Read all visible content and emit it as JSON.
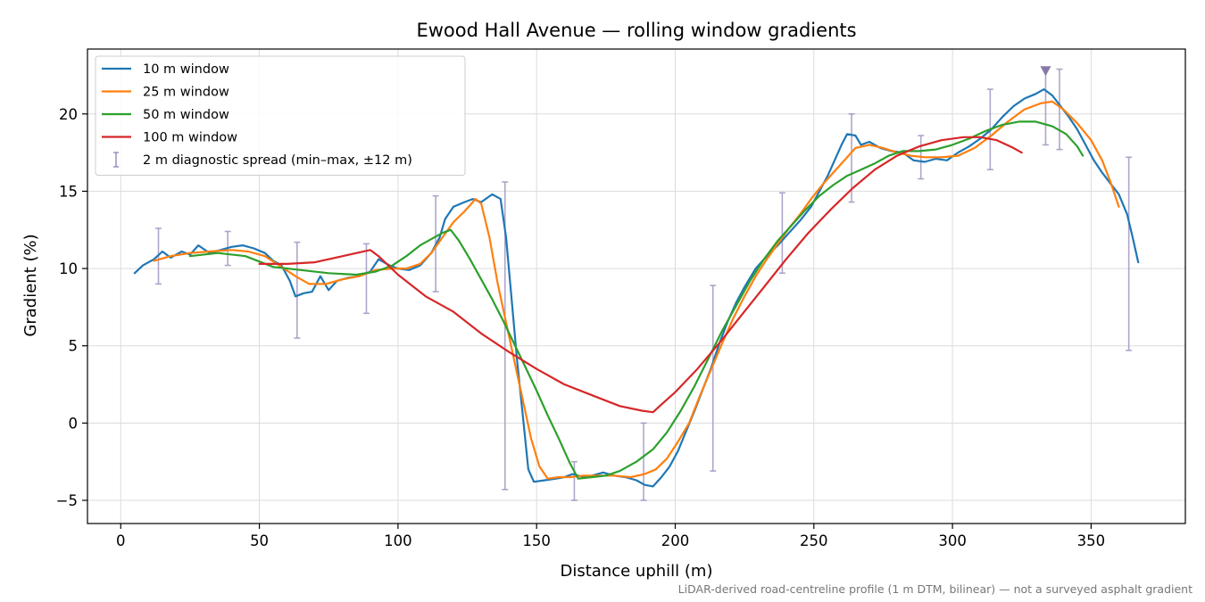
{
  "chart_data": {
    "type": "line",
    "title": "Ewood Hall Avenue — rolling window gradients",
    "xlabel": "Distance uphill (m)",
    "ylabel": "Gradient (%)",
    "xlim": [
      -12,
      384
    ],
    "ylim": [
      -6.5,
      24.2
    ],
    "xticks": [
      0,
      50,
      100,
      150,
      200,
      250,
      300,
      350
    ],
    "yticks": [
      -5,
      0,
      5,
      10,
      15,
      20
    ],
    "grid": true,
    "legend_position": "top-left",
    "footnote": "LiDAR-derived road-centreline profile (1 m DTM, bilinear) — not a surveyed asphalt gradient",
    "series": [
      {
        "name": "10 m window",
        "color": "#1f77b4",
        "points": [
          [
            5,
            9.7
          ],
          [
            8,
            10.2
          ],
          [
            12,
            10.6
          ],
          [
            15,
            11.1
          ],
          [
            18,
            10.7
          ],
          [
            22,
            11.1
          ],
          [
            25,
            10.9
          ],
          [
            28,
            11.5
          ],
          [
            32,
            11.0
          ],
          [
            36,
            11.2
          ],
          [
            40,
            11.4
          ],
          [
            44,
            11.5
          ],
          [
            48,
            11.3
          ],
          [
            52,
            11.0
          ],
          [
            55,
            10.5
          ],
          [
            58,
            10.2
          ],
          [
            61,
            9.2
          ],
          [
            63,
            8.2
          ],
          [
            66,
            8.4
          ],
          [
            69,
            8.5
          ],
          [
            72,
            9.5
          ],
          [
            75,
            8.6
          ],
          [
            78,
            9.2
          ],
          [
            82,
            9.4
          ],
          [
            86,
            9.5
          ],
          [
            90,
            9.8
          ],
          [
            93,
            10.6
          ],
          [
            97,
            10.2
          ],
          [
            100,
            10.0
          ],
          [
            104,
            9.9
          ],
          [
            108,
            10.2
          ],
          [
            112,
            11.0
          ],
          [
            115,
            12.0
          ],
          [
            117,
            13.2
          ],
          [
            120,
            14.0
          ],
          [
            124,
            14.3
          ],
          [
            127,
            14.5
          ],
          [
            130,
            14.3
          ],
          [
            134,
            14.8
          ],
          [
            137,
            14.5
          ],
          [
            139,
            12.0
          ],
          [
            141,
            8.0
          ],
          [
            143,
            4.0
          ],
          [
            145,
            0.5
          ],
          [
            147,
            -3.0
          ],
          [
            149,
            -3.8
          ],
          [
            153,
            -3.7
          ],
          [
            157,
            -3.6
          ],
          [
            160,
            -3.5
          ],
          [
            163,
            -3.3
          ],
          [
            167,
            -3.5
          ],
          [
            170,
            -3.4
          ],
          [
            174,
            -3.2
          ],
          [
            178,
            -3.4
          ],
          [
            182,
            -3.5
          ],
          [
            186,
            -3.7
          ],
          [
            189,
            -4.0
          ],
          [
            192,
            -4.1
          ],
          [
            195,
            -3.5
          ],
          [
            198,
            -2.8
          ],
          [
            201,
            -1.8
          ],
          [
            204,
            -0.5
          ],
          [
            207,
            0.8
          ],
          [
            210,
            2.2
          ],
          [
            213,
            3.6
          ],
          [
            216,
            5.2
          ],
          [
            219,
            6.6
          ],
          [
            222,
            7.8
          ],
          [
            225,
            8.8
          ],
          [
            229,
            10.0
          ],
          [
            233,
            10.8
          ],
          [
            237,
            11.5
          ],
          [
            241,
            12.3
          ],
          [
            245,
            13.1
          ],
          [
            249,
            14.0
          ],
          [
            252,
            15.0
          ],
          [
            255,
            16.0
          ],
          [
            258,
            17.2
          ],
          [
            260,
            18.0
          ],
          [
            262,
            18.7
          ],
          [
            265,
            18.6
          ],
          [
            267,
            18.0
          ],
          [
            270,
            18.2
          ],
          [
            274,
            17.8
          ],
          [
            278,
            17.6
          ],
          [
            282,
            17.5
          ],
          [
            286,
            17.0
          ],
          [
            290,
            16.9
          ],
          [
            294,
            17.1
          ],
          [
            298,
            17.0
          ],
          [
            302,
            17.5
          ],
          [
            306,
            17.9
          ],
          [
            310,
            18.4
          ],
          [
            314,
            19.0
          ],
          [
            318,
            19.8
          ],
          [
            322,
            20.5
          ],
          [
            326,
            21.0
          ],
          [
            330,
            21.3
          ],
          [
            333,
            21.6
          ],
          [
            336,
            21.2
          ],
          [
            339,
            20.5
          ],
          [
            342,
            19.8
          ],
          [
            345,
            19.0
          ],
          [
            348,
            18.0
          ],
          [
            351,
            17.0
          ],
          [
            354,
            16.2
          ],
          [
            357,
            15.5
          ],
          [
            360,
            14.8
          ],
          [
            363,
            13.5
          ],
          [
            365,
            12.0
          ],
          [
            367,
            10.4
          ]
        ]
      },
      {
        "name": "25 m window",
        "color": "#ff7f0e",
        "points": [
          [
            12,
            10.5
          ],
          [
            18,
            10.8
          ],
          [
            25,
            11.0
          ],
          [
            32,
            11.1
          ],
          [
            40,
            11.2
          ],
          [
            46,
            11.1
          ],
          [
            52,
            10.8
          ],
          [
            58,
            10.1
          ],
          [
            63,
            9.5
          ],
          [
            68,
            9.0
          ],
          [
            74,
            9.0
          ],
          [
            80,
            9.3
          ],
          [
            86,
            9.5
          ],
          [
            92,
            9.9
          ],
          [
            98,
            10.0
          ],
          [
            103,
            10.0
          ],
          [
            108,
            10.3
          ],
          [
            112,
            11.0
          ],
          [
            116,
            12.0
          ],
          [
            120,
            13.0
          ],
          [
            124,
            13.7
          ],
          [
            128,
            14.5
          ],
          [
            130,
            14.2
          ],
          [
            133,
            12.0
          ],
          [
            136,
            9.0
          ],
          [
            139,
            6.5
          ],
          [
            142,
            4.0
          ],
          [
            145,
            1.5
          ],
          [
            148,
            -1.0
          ],
          [
            151,
            -2.8
          ],
          [
            154,
            -3.6
          ],
          [
            158,
            -3.5
          ],
          [
            162,
            -3.5
          ],
          [
            167,
            -3.4
          ],
          [
            172,
            -3.4
          ],
          [
            178,
            -3.4
          ],
          [
            184,
            -3.5
          ],
          [
            189,
            -3.3
          ],
          [
            193,
            -3.0
          ],
          [
            197,
            -2.3
          ],
          [
            201,
            -1.2
          ],
          [
            205,
            0.0
          ],
          [
            209,
            1.8
          ],
          [
            213,
            3.5
          ],
          [
            217,
            5.2
          ],
          [
            221,
            6.8
          ],
          [
            225,
            8.2
          ],
          [
            229,
            9.5
          ],
          [
            233,
            10.6
          ],
          [
            237,
            11.6
          ],
          [
            241,
            12.6
          ],
          [
            245,
            13.5
          ],
          [
            249,
            14.5
          ],
          [
            253,
            15.4
          ],
          [
            257,
            16.2
          ],
          [
            261,
            17.0
          ],
          [
            265,
            17.8
          ],
          [
            270,
            18.0
          ],
          [
            275,
            17.8
          ],
          [
            280,
            17.5
          ],
          [
            285,
            17.3
          ],
          [
            290,
            17.2
          ],
          [
            296,
            17.2
          ],
          [
            302,
            17.3
          ],
          [
            308,
            17.8
          ],
          [
            314,
            18.6
          ],
          [
            320,
            19.5
          ],
          [
            326,
            20.3
          ],
          [
            332,
            20.7
          ],
          [
            336,
            20.8
          ],
          [
            340,
            20.3
          ],
          [
            345,
            19.4
          ],
          [
            350,
            18.3
          ],
          [
            354,
            17.0
          ],
          [
            357,
            15.6
          ],
          [
            360,
            14.0
          ]
        ]
      },
      {
        "name": "50 m window",
        "color": "#2ca02c",
        "points": [
          [
            25,
            10.8
          ],
          [
            35,
            11.0
          ],
          [
            45,
            10.8
          ],
          [
            55,
            10.1
          ],
          [
            65,
            9.9
          ],
          [
            75,
            9.7
          ],
          [
            85,
            9.6
          ],
          [
            92,
            9.8
          ],
          [
            98,
            10.2
          ],
          [
            103,
            10.8
          ],
          [
            108,
            11.5
          ],
          [
            112,
            11.9
          ],
          [
            116,
            12.3
          ],
          [
            119,
            12.5
          ],
          [
            122,
            11.8
          ],
          [
            126,
            10.6
          ],
          [
            130,
            9.3
          ],
          [
            134,
            8.0
          ],
          [
            138,
            6.6
          ],
          [
            142,
            5.1
          ],
          [
            146,
            3.6
          ],
          [
            150,
            2.1
          ],
          [
            154,
            0.5
          ],
          [
            158,
            -1.0
          ],
          [
            162,
            -2.6
          ],
          [
            165,
            -3.6
          ],
          [
            170,
            -3.5
          ],
          [
            175,
            -3.4
          ],
          [
            180,
            -3.1
          ],
          [
            186,
            -2.5
          ],
          [
            192,
            -1.7
          ],
          [
            197,
            -0.6
          ],
          [
            202,
            0.8
          ],
          [
            207,
            2.4
          ],
          [
            212,
            4.2
          ],
          [
            217,
            6.0
          ],
          [
            222,
            7.6
          ],
          [
            227,
            9.2
          ],
          [
            232,
            10.6
          ],
          [
            237,
            11.8
          ],
          [
            242,
            12.8
          ],
          [
            247,
            13.8
          ],
          [
            252,
            14.7
          ],
          [
            257,
            15.4
          ],
          [
            262,
            16.0
          ],
          [
            267,
            16.4
          ],
          [
            272,
            16.8
          ],
          [
            277,
            17.3
          ],
          [
            282,
            17.6
          ],
          [
            288,
            17.6
          ],
          [
            294,
            17.7
          ],
          [
            300,
            18.0
          ],
          [
            306,
            18.4
          ],
          [
            312,
            18.9
          ],
          [
            318,
            19.3
          ],
          [
            324,
            19.5
          ],
          [
            330,
            19.5
          ],
          [
            336,
            19.2
          ],
          [
            341,
            18.7
          ],
          [
            345,
            17.9
          ],
          [
            347,
            17.3
          ]
        ]
      },
      {
        "name": "100 m window",
        "color": "#d62728",
        "points": [
          [
            50,
            10.3
          ],
          [
            60,
            10.3
          ],
          [
            70,
            10.4
          ],
          [
            80,
            10.8
          ],
          [
            90,
            11.2
          ],
          [
            93,
            10.8
          ],
          [
            100,
            9.6
          ],
          [
            110,
            8.2
          ],
          [
            120,
            7.2
          ],
          [
            130,
            5.8
          ],
          [
            140,
            4.6
          ],
          [
            150,
            3.5
          ],
          [
            160,
            2.5
          ],
          [
            170,
            1.8
          ],
          [
            180,
            1.1
          ],
          [
            188,
            0.8
          ],
          [
            192,
            0.7
          ],
          [
            195,
            1.2
          ],
          [
            200,
            2.0
          ],
          [
            208,
            3.5
          ],
          [
            216,
            5.2
          ],
          [
            224,
            7.0
          ],
          [
            232,
            8.8
          ],
          [
            240,
            10.6
          ],
          [
            248,
            12.3
          ],
          [
            256,
            13.8
          ],
          [
            264,
            15.2
          ],
          [
            272,
            16.4
          ],
          [
            280,
            17.3
          ],
          [
            288,
            17.9
          ],
          [
            296,
            18.3
          ],
          [
            304,
            18.5
          ],
          [
            310,
            18.5
          ],
          [
            316,
            18.3
          ],
          [
            322,
            17.8
          ],
          [
            325,
            17.5
          ]
        ]
      }
    ],
    "error_bars": {
      "name": "2 m diagnostic spread (min–max, ±12 m)",
      "color": "#a096c3",
      "items": [
        {
          "x": 13.6,
          "low": 9.0,
          "high": 12.6
        },
        {
          "x": 38.6,
          "low": 10.2,
          "high": 12.4
        },
        {
          "x": 63.6,
          "low": 5.5,
          "high": 11.7
        },
        {
          "x": 88.6,
          "low": 7.1,
          "high": 11.6
        },
        {
          "x": 113.6,
          "low": 8.5,
          "high": 14.7
        },
        {
          "x": 138.6,
          "low": -4.3,
          "high": 15.6
        },
        {
          "x": 163.6,
          "low": -5.0,
          "high": -2.5
        },
        {
          "x": 188.6,
          "low": -5.0,
          "high": 0.0
        },
        {
          "x": 213.6,
          "low": -3.1,
          "high": 8.9
        },
        {
          "x": 238.6,
          "low": 9.7,
          "high": 14.9
        },
        {
          "x": 263.6,
          "low": 14.3,
          "high": 20.0
        },
        {
          "x": 288.6,
          "low": 15.8,
          "high": 18.6
        },
        {
          "x": 313.6,
          "low": 16.4,
          "high": 21.6
        },
        {
          "x": 333.6,
          "low": 18.0,
          "high": 23.0
        },
        {
          "x": 338.6,
          "low": 17.7,
          "high": 22.9
        },
        {
          "x": 363.6,
          "low": 4.7,
          "high": 17.2
        }
      ]
    },
    "peak_marker": {
      "x": 333.6,
      "y": 22.8,
      "color": "#8878a8"
    }
  }
}
